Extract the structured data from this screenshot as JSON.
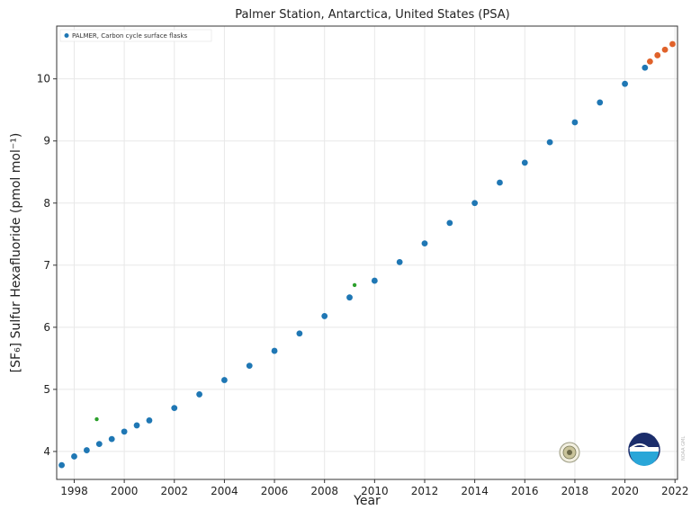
{
  "chart_data": {
    "type": "scatter",
    "title": "Palmer Station, Antarctica, United States (PSA)",
    "xlabel": "Year",
    "ylabel": "[SF₆] Sulfur Hexafluoride (pmol mol⁻¹)",
    "xlim": [
      1997.3,
      2022.1
    ],
    "ylim": [
      3.55,
      10.85
    ],
    "x_ticks": [
      1998,
      2000,
      2002,
      2004,
      2006,
      2008,
      2010,
      2012,
      2014,
      2016,
      2018,
      2020,
      2022
    ],
    "y_ticks": [
      4,
      5,
      6,
      7,
      8,
      9,
      10
    ],
    "grid": true,
    "legend_position": "top-left",
    "series": [
      {
        "name": "PALMER, Carbon cycle surface flasks",
        "color": "#1f77b4",
        "x": [
          1997.5,
          1998.0,
          1998.5,
          1999.0,
          1999.5,
          2000.0,
          2000.5,
          2001.0,
          2002.0,
          2003.0,
          2004.0,
          2005.0,
          2006.0,
          2007.0,
          2008.0,
          2009.0,
          2010.0,
          2011.0,
          2012.0,
          2013.0,
          2014.0,
          2015.0,
          2016.0,
          2017.0,
          2018.0,
          2019.0,
          2020.0,
          2020.8
        ],
        "y": [
          3.78,
          3.92,
          4.02,
          4.12,
          4.2,
          4.32,
          4.42,
          4.5,
          4.7,
          4.92,
          5.15,
          5.38,
          5.62,
          5.9,
          6.18,
          6.48,
          6.75,
          7.05,
          7.35,
          7.68,
          8.0,
          8.33,
          8.65,
          8.98,
          9.3,
          9.62,
          9.92,
          10.18
        ]
      },
      {
        "name": "",
        "color": "#e0622a",
        "x": [
          2021.0,
          2021.3,
          2021.6,
          2021.9
        ],
        "y": [
          10.28,
          10.38,
          10.47,
          10.56
        ]
      },
      {
        "name": "",
        "color": "#2ca02c",
        "x": [
          1998.9,
          2009.2
        ],
        "y": [
          4.52,
          6.68
        ]
      }
    ]
  },
  "logo_icons": [
    "institution-seal-icon",
    "noaa-logo-icon"
  ]
}
